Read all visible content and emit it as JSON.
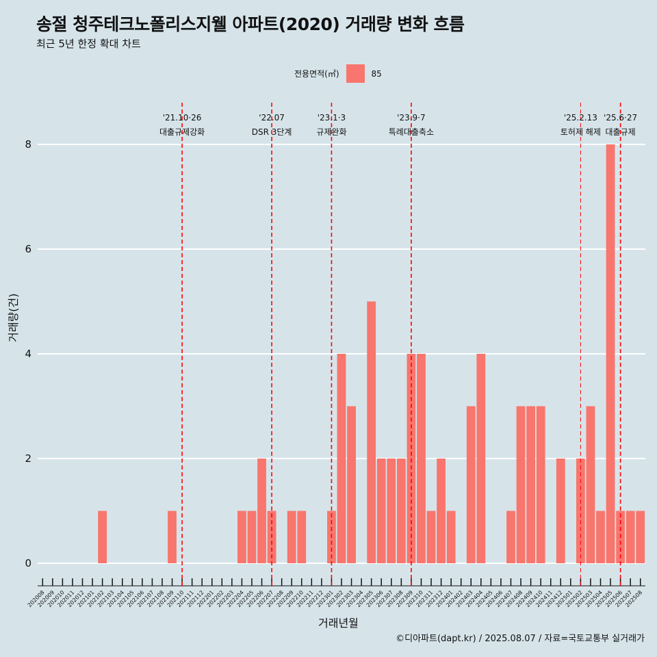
{
  "title": "송절 청주테크노폴리스지웰 아파트(2020) 거래량 변화 흐름",
  "subtitle": "최근 5년 한정 확대 차트",
  "caption": "©디아파트(dapt.kr) / 2025.08.07 / 자료=국토교통부 실거래가",
  "legend": {
    "title": "전용면적(㎡)",
    "item": "85",
    "color": "#f8766d"
  },
  "colors": {
    "background": "#d6e4ea",
    "bar": "#f8766d",
    "event_line": "#ff0000",
    "grid": "#ffffff"
  },
  "chart_data": {
    "type": "bar",
    "xlabel": "거래년월",
    "ylabel": "거래량(건)",
    "ylim": [
      0,
      8
    ],
    "yticks": [
      0,
      2,
      4,
      6,
      8
    ],
    "grid": "horizontal",
    "legend_position": "top",
    "categories": [
      "202008",
      "202009",
      "202010",
      "202011",
      "202012",
      "202101",
      "202102",
      "202103",
      "202104",
      "202105",
      "202106",
      "202107",
      "202108",
      "202109",
      "202110",
      "202111",
      "202112",
      "202201",
      "202202",
      "202203",
      "202204",
      "202205",
      "202206",
      "202207",
      "202208",
      "202209",
      "202210",
      "202211",
      "202212",
      "202301",
      "202302",
      "202303",
      "202304",
      "202305",
      "202306",
      "202307",
      "202308",
      "202309",
      "202310",
      "202311",
      "202312",
      "202401",
      "202402",
      "202403",
      "202404",
      "202405",
      "202406",
      "202407",
      "202408",
      "202409",
      "202410",
      "202411",
      "202412",
      "202501",
      "202502",
      "202503",
      "202504",
      "202505",
      "202506",
      "202507",
      "202508"
    ],
    "series": [
      {
        "name": "85",
        "values": [
          0,
          0,
          0,
          0,
          0,
          0,
          1,
          0,
          0,
          0,
          0,
          0,
          0,
          1,
          0,
          0,
          0,
          0,
          0,
          0,
          1,
          1,
          2,
          1,
          0,
          1,
          1,
          0,
          0,
          1,
          4,
          3,
          0,
          5,
          2,
          2,
          2,
          4,
          4,
          1,
          2,
          1,
          0,
          3,
          4,
          0,
          0,
          1,
          3,
          3,
          3,
          0,
          2,
          0,
          2,
          3,
          1,
          8,
          1,
          1,
          1
        ]
      }
    ],
    "annotations": [
      {
        "date": "'21.10·26",
        "label": "대출규제강화",
        "x": "202110"
      },
      {
        "date": "'22.07",
        "label": "DSR 3단계",
        "x": "202207"
      },
      {
        "date": "'23.1·3",
        "label": "규제완화",
        "x": "202301"
      },
      {
        "date": "'23.9·7",
        "label": "특례대출축소",
        "x": "202309"
      },
      {
        "date": "'25.2.13",
        "label": "토허제 해제",
        "x": "202502"
      },
      {
        "date": "'25.6·27",
        "label": "대출규제",
        "x": "202506"
      }
    ]
  }
}
